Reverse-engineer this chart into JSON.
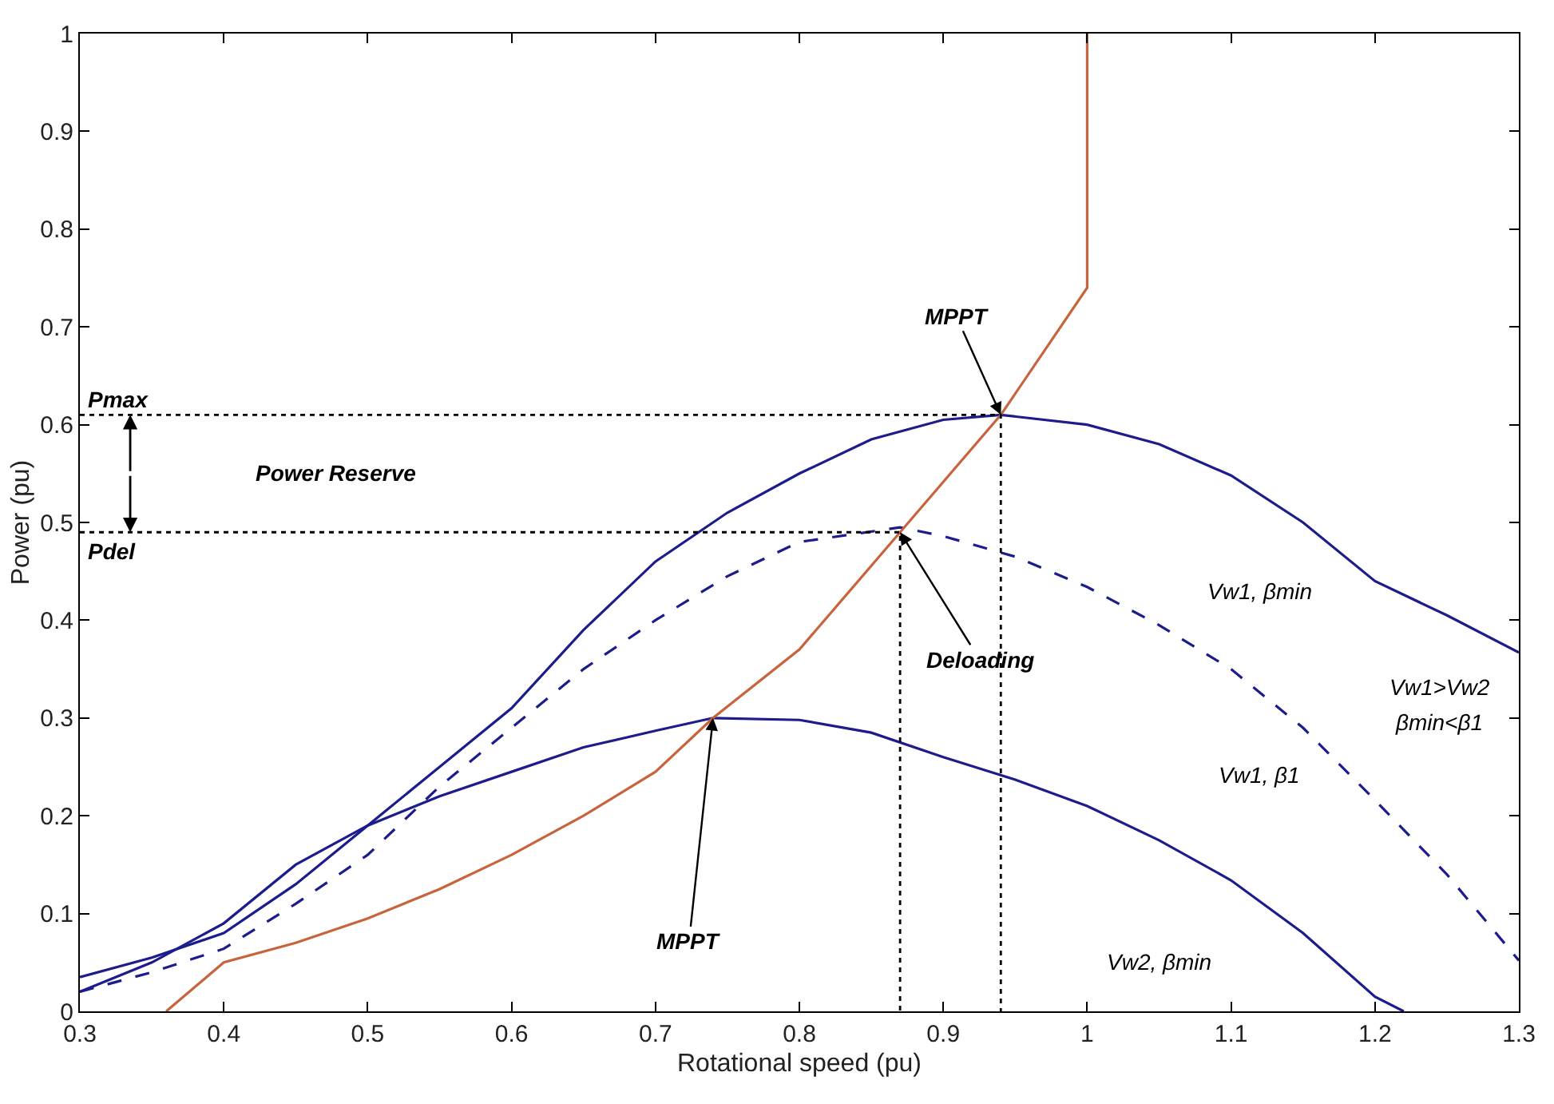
{
  "chart_data": {
    "type": "line",
    "xlabel": "Rotational speed (pu)",
    "ylabel": "Power (pu)",
    "xlim": [
      0.3,
      1.3
    ],
    "xticks": [
      0.3,
      0.4,
      0.5,
      0.6,
      0.7,
      0.8,
      0.9,
      1,
      1.1,
      1.2,
      1.3
    ],
    "ylim": [
      0,
      1
    ],
    "yticks": [
      0,
      0.1,
      0.2,
      0.3,
      0.4,
      0.5,
      0.6,
      0.7,
      0.8,
      0.9,
      1
    ],
    "marker": "none",
    "series": [
      {
        "color": "#1c1c8c",
        "line_style": "solid",
        "x": [
          0.3,
          0.35,
          0.4,
          0.45,
          0.5,
          0.55,
          0.6,
          0.65,
          0.7,
          0.75,
          0.8,
          0.85,
          0.9,
          0.94,
          1.0,
          1.05,
          1.1,
          1.15,
          1.2,
          1.25,
          1.3
        ],
        "values": [
          0.035,
          0.055,
          0.08,
          0.13,
          0.19,
          0.25,
          0.31,
          0.39,
          0.46,
          0.51,
          0.55,
          0.585,
          0.605,
          0.61,
          0.6,
          0.58,
          0.548,
          0.5,
          0.44,
          0.405,
          0.367
        ]
      },
      {
        "color": "#1c1c8c",
        "line_style": "dashed",
        "x": [
          0.3,
          0.35,
          0.4,
          0.45,
          0.5,
          0.55,
          0.6,
          0.65,
          0.7,
          0.75,
          0.8,
          0.87,
          0.9,
          0.95,
          1.0,
          1.05,
          1.1,
          1.15,
          1.2,
          1.25,
          1.3
        ],
        "values": [
          0.02,
          0.04,
          0.064,
          0.11,
          0.16,
          0.23,
          0.29,
          0.35,
          0.4,
          0.445,
          0.48,
          0.495,
          0.486,
          0.465,
          0.434,
          0.395,
          0.35,
          0.29,
          0.216,
          0.14,
          0.052
        ]
      },
      {
        "color": "#1c1c8c",
        "line_style": "solid",
        "x": [
          0.3,
          0.35,
          0.4,
          0.45,
          0.5,
          0.55,
          0.6,
          0.65,
          0.7,
          0.74,
          0.8,
          0.85,
          0.9,
          0.95,
          1.0,
          1.05,
          1.1,
          1.15,
          1.2,
          1.22
        ],
        "values": [
          0.02,
          0.05,
          0.09,
          0.15,
          0.19,
          0.22,
          0.245,
          0.27,
          0.287,
          0.3,
          0.298,
          0.285,
          0.26,
          0.237,
          0.21,
          0.175,
          0.134,
          0.08,
          0.015,
          0
        ]
      },
      {
        "color": "#c8643c",
        "line_style": "solid",
        "x": [
          0.36,
          0.4,
          0.45,
          0.5,
          0.55,
          0.6,
          0.65,
          0.7,
          0.74,
          0.8,
          0.87,
          0.94,
          1.0,
          1.0
        ],
        "values": [
          0,
          0.05,
          0.07,
          0.095,
          0.125,
          0.16,
          0.2,
          0.245,
          0.3,
          0.37,
          0.49,
          0.61,
          0.74,
          1
        ]
      },
      {
        "color": "#000000",
        "line_style": "dotted",
        "x": [
          0.3,
          0.94,
          0.94
        ],
        "values": [
          0.61,
          0.61,
          0
        ]
      },
      {
        "color": "#000000",
        "line_style": "dotted",
        "x": [
          0.3,
          0.87,
          0.87
        ],
        "values": [
          0.49,
          0.49,
          0
        ]
      }
    ],
    "annotations": [
      {
        "text": "MPPT",
        "x": 0.94,
        "y": 0.61
      },
      {
        "text": "Deloading",
        "x": 0.87,
        "y": 0.49
      },
      {
        "text": "MPPT",
        "x": 0.74,
        "y": 0.3
      },
      "Power Reserve",
      {
        "text": "Pmax",
        "x": 0.3,
        "y": 0.61
      },
      {
        "text": "Pdel",
        "x": 0.3,
        "y": 0.49
      },
      "Vw1, βmin",
      "Vw1>Vw2",
      "βmin<β1",
      "Vw1, β1",
      "Vw2, βmin"
    ]
  }
}
